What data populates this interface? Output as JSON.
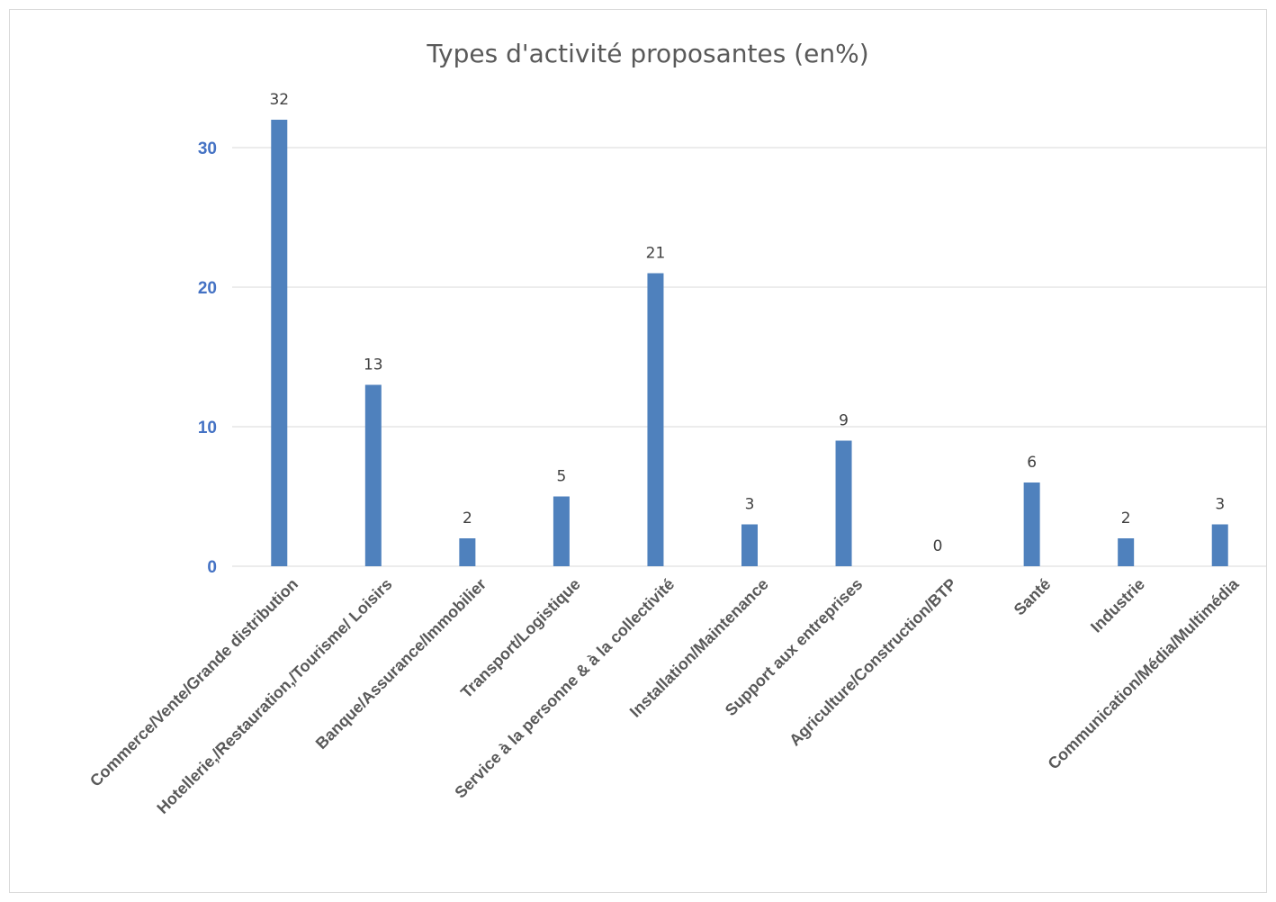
{
  "chart_data": {
    "type": "bar",
    "title": "Types d'activité proposantes (en%)",
    "xlabel": "",
    "ylabel": "",
    "categories": [
      "Commerce/Vente/Grande distribution",
      "Hotellerie,/Restauration,/Tourisme/ Loisirs",
      "Banque/Assurance/Immobilier",
      "Transport/Logistique",
      "Service à la personne & à la collectivité",
      "Installation/Maintenance",
      "Support aux entreprises",
      "Agriculture/Construction/BTP",
      "Santé",
      "Industrie",
      "Communication/Média/Multimédia"
    ],
    "values": [
      32,
      13,
      2,
      5,
      21,
      3,
      9,
      0,
      6,
      2,
      3
    ],
    "ylim": [
      0,
      30
    ],
    "yticks": [
      0,
      10,
      20,
      30
    ],
    "grid": true,
    "legend": "none",
    "bar_color": "#4f81bd",
    "data_labels": true
  }
}
